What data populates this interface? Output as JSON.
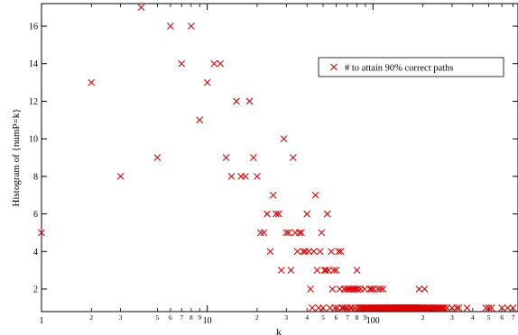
{
  "chart_data": {
    "type": "scatter",
    "title": "",
    "xlabel": "k",
    "ylabel": "Histogram of {numP=k}",
    "xscale": "log",
    "xlim": [
      1,
      750
    ],
    "ylim": [
      0.8,
      17.2
    ],
    "grid": false,
    "legend_position": "top-right",
    "marker": "x",
    "marker_color": "#e00000",
    "x_major_ticks": [
      {
        "value": 1,
        "label": "1"
      },
      {
        "value": 10,
        "label": "10"
      },
      {
        "value": 100,
        "label": "100"
      }
    ],
    "x_minor_ticks": [
      {
        "value": 2,
        "label": "2"
      },
      {
        "value": 3,
        "label": "3"
      },
      {
        "value": 5,
        "label": "5"
      },
      {
        "value": 6,
        "label": "6"
      },
      {
        "value": 7,
        "label": "7"
      },
      {
        "value": 8,
        "label": "8"
      },
      {
        "value": 9,
        "label": "9"
      },
      {
        "value": 20,
        "label": "2"
      },
      {
        "value": 30,
        "label": "3"
      },
      {
        "value": 40,
        "label": "4"
      },
      {
        "value": 50,
        "label": "5"
      },
      {
        "value": 60,
        "label": "6"
      },
      {
        "value": 70,
        "label": "7"
      },
      {
        "value": 80,
        "label": "8"
      },
      {
        "value": 90,
        "label": "9"
      },
      {
        "value": 200,
        "label": "2"
      },
      {
        "value": 300,
        "label": "3"
      },
      {
        "value": 400,
        "label": "4"
      },
      {
        "value": 500,
        "label": "5"
      },
      {
        "value": 600,
        "label": "6"
      },
      {
        "value": 700,
        "label": "7"
      }
    ],
    "y_ticks": [
      {
        "value": 2,
        "label": "2"
      },
      {
        "value": 4,
        "label": "4"
      },
      {
        "value": 6,
        "label": "6"
      },
      {
        "value": 8,
        "label": "8"
      },
      {
        "value": 10,
        "label": "10"
      },
      {
        "value": 12,
        "label": "12"
      },
      {
        "value": 14,
        "label": "14"
      },
      {
        "value": 16,
        "label": "16"
      }
    ],
    "series": [
      {
        "name": "# to attain 90% correct paths",
        "points": [
          [
            1,
            5
          ],
          [
            2,
            13
          ],
          [
            3,
            8
          ],
          [
            4,
            17
          ],
          [
            5,
            9
          ],
          [
            6,
            16
          ],
          [
            7,
            14
          ],
          [
            8,
            16
          ],
          [
            9,
            11
          ],
          [
            10,
            13
          ],
          [
            11,
            14
          ],
          [
            12,
            14
          ],
          [
            13,
            9
          ],
          [
            14,
            8
          ],
          [
            15,
            12
          ],
          [
            16,
            8
          ],
          [
            17,
            8
          ],
          [
            18,
            12
          ],
          [
            19,
            9
          ],
          [
            20,
            8
          ],
          [
            21,
            5
          ],
          [
            22,
            5
          ],
          [
            23,
            6
          ],
          [
            24,
            4
          ],
          [
            25,
            7
          ],
          [
            26,
            6
          ],
          [
            27,
            6
          ],
          [
            28,
            3
          ],
          [
            29,
            10
          ],
          [
            30,
            5
          ],
          [
            31,
            5
          ],
          [
            32,
            3
          ],
          [
            33,
            9
          ],
          [
            34,
            5
          ],
          [
            35,
            4
          ],
          [
            36,
            5
          ],
          [
            37,
            5
          ],
          [
            38,
            4
          ],
          [
            39,
            4
          ],
          [
            40,
            6
          ],
          [
            41,
            4
          ],
          [
            42,
            2
          ],
          [
            43,
            1
          ],
          [
            44,
            4
          ],
          [
            45,
            7
          ],
          [
            46,
            3
          ],
          [
            47,
            1
          ],
          [
            48,
            4
          ],
          [
            49,
            5
          ],
          [
            50,
            1
          ],
          [
            51,
            3
          ],
          [
            52,
            3
          ],
          [
            53,
            6
          ],
          [
            54,
            3
          ],
          [
            55,
            1
          ],
          [
            56,
            4
          ],
          [
            57,
            2
          ],
          [
            58,
            3
          ],
          [
            59,
            1
          ],
          [
            60,
            3
          ],
          [
            61,
            1
          ],
          [
            62,
            4
          ],
          [
            63,
            2
          ],
          [
            64,
            4
          ],
          [
            65,
            1
          ],
          [
            66,
            1
          ],
          [
            67,
            2
          ],
          [
            68,
            1
          ],
          [
            69,
            2
          ],
          [
            70,
            1
          ],
          [
            71,
            2
          ],
          [
            72,
            2
          ],
          [
            73,
            1
          ],
          [
            74,
            2
          ],
          [
            75,
            1
          ],
          [
            76,
            2
          ],
          [
            77,
            2
          ],
          [
            78,
            1
          ],
          [
            79,
            2
          ],
          [
            80,
            3
          ],
          [
            81,
            2
          ],
          [
            82,
            1
          ],
          [
            83,
            1
          ],
          [
            84,
            2
          ],
          [
            85,
            1
          ],
          [
            86,
            1
          ],
          [
            87,
            1
          ],
          [
            88,
            1
          ],
          [
            89,
            2
          ],
          [
            90,
            1
          ],
          [
            91,
            1
          ],
          [
            92,
            1
          ],
          [
            93,
            1
          ],
          [
            94,
            1
          ],
          [
            95,
            1
          ],
          [
            96,
            2
          ],
          [
            97,
            1
          ],
          [
            98,
            2
          ],
          [
            99,
            1
          ],
          [
            100,
            1
          ],
          [
            101,
            2
          ],
          [
            102,
            1
          ],
          [
            103,
            1
          ],
          [
            104,
            1
          ],
          [
            105,
            1
          ],
          [
            106,
            1
          ],
          [
            107,
            2
          ],
          [
            108,
            1
          ],
          [
            109,
            1
          ],
          [
            110,
            1
          ],
          [
            111,
            2
          ],
          [
            112,
            1
          ],
          [
            113,
            1
          ],
          [
            114,
            1
          ],
          [
            115,
            2
          ],
          [
            116,
            1
          ],
          [
            117,
            1
          ],
          [
            118,
            1
          ],
          [
            119,
            1
          ],
          [
            120,
            1
          ],
          [
            121,
            1
          ],
          [
            122,
            1
          ],
          [
            123,
            1
          ],
          [
            124,
            1
          ],
          [
            125,
            1
          ],
          [
            126,
            1
          ],
          [
            127,
            1
          ],
          [
            128,
            1
          ],
          [
            129,
            1
          ],
          [
            130,
            1
          ],
          [
            131,
            1
          ],
          [
            132,
            1
          ],
          [
            133,
            1
          ],
          [
            134,
            1
          ],
          [
            135,
            1
          ],
          [
            136,
            1
          ],
          [
            137,
            1
          ],
          [
            138,
            1
          ],
          [
            139,
            1
          ],
          [
            140,
            1
          ],
          [
            141,
            1
          ],
          [
            142,
            1
          ],
          [
            143,
            1
          ],
          [
            144,
            1
          ],
          [
            145,
            1
          ],
          [
            146,
            1
          ],
          [
            147,
            1
          ],
          [
            148,
            1
          ],
          [
            149,
            1
          ],
          [
            150,
            1
          ],
          [
            151,
            1
          ],
          [
            152,
            1
          ],
          [
            153,
            1
          ],
          [
            154,
            1
          ],
          [
            155,
            1
          ],
          [
            156,
            1
          ],
          [
            157,
            1
          ],
          [
            158,
            1
          ],
          [
            159,
            1
          ],
          [
            160,
            1
          ],
          [
            161,
            1
          ],
          [
            162,
            1
          ],
          [
            163,
            1
          ],
          [
            164,
            1
          ],
          [
            165,
            1
          ],
          [
            166,
            1
          ],
          [
            167,
            1
          ],
          [
            168,
            1
          ],
          [
            169,
            1
          ],
          [
            170,
            1
          ],
          [
            171,
            1
          ],
          [
            172,
            1
          ],
          [
            173,
            1
          ],
          [
            174,
            1
          ],
          [
            175,
            1
          ],
          [
            176,
            1
          ],
          [
            177,
            1
          ],
          [
            178,
            1
          ],
          [
            179,
            1
          ],
          [
            180,
            1
          ],
          [
            181,
            1
          ],
          [
            183,
            1
          ],
          [
            185,
            1
          ],
          [
            187,
            1
          ],
          [
            189,
            1
          ],
          [
            190,
            2
          ],
          [
            192,
            1
          ],
          [
            194,
            1
          ],
          [
            196,
            1
          ],
          [
            198,
            1
          ],
          [
            200,
            1
          ],
          [
            203,
            1
          ],
          [
            205,
            2
          ],
          [
            208,
            1
          ],
          [
            210,
            1
          ],
          [
            213,
            1
          ],
          [
            215,
            1
          ],
          [
            218,
            1
          ],
          [
            220,
            1
          ],
          [
            225,
            1
          ],
          [
            230,
            1
          ],
          [
            235,
            1
          ],
          [
            240,
            1
          ],
          [
            245,
            1
          ],
          [
            250,
            1
          ],
          [
            255,
            1
          ],
          [
            260,
            1
          ],
          [
            265,
            1
          ],
          [
            270,
            1
          ],
          [
            280,
            1
          ],
          [
            300,
            1
          ],
          [
            320,
            1
          ],
          [
            330,
            1
          ],
          [
            370,
            1
          ],
          [
            480,
            1
          ],
          [
            500,
            1
          ],
          [
            520,
            1
          ],
          [
            600,
            1
          ],
          [
            650,
            1
          ],
          [
            700,
            1
          ]
        ]
      }
    ]
  }
}
